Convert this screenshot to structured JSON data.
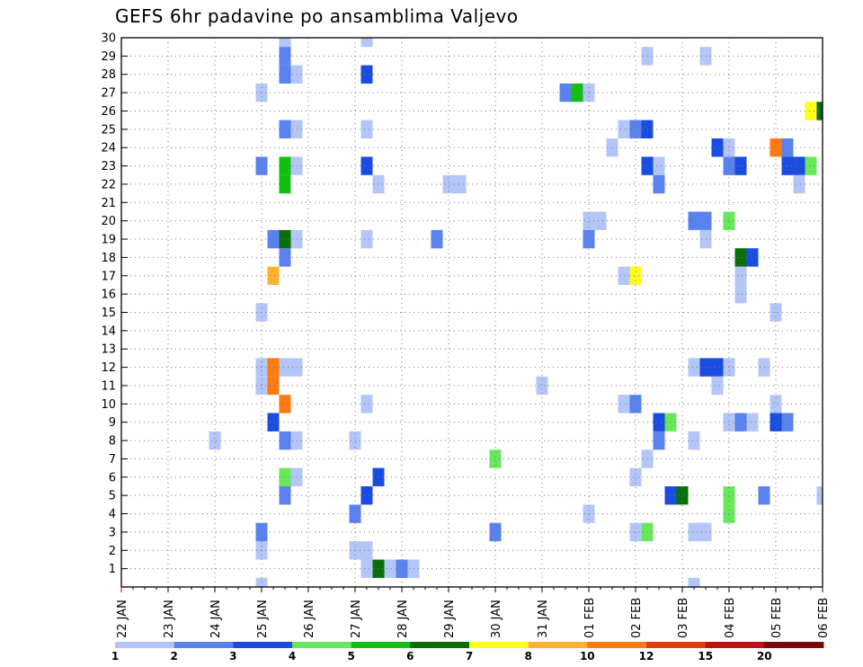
{
  "chart_data": {
    "type": "heatmap",
    "title": "GEFS 6hr padavine po ansamblima Valjevo",
    "x_tick_labels": [
      "22 JAN",
      "23 JAN",
      "24 JAN",
      "25 JAN",
      "26 JAN",
      "27 JAN",
      "28 JAN",
      "29 JAN",
      "30 JAN",
      "31 JAN",
      "01 FEB",
      "02 FEB",
      "03 FEB",
      "04 FEB",
      "05 FEB",
      "06 FEB"
    ],
    "y_tick_labels": [
      "1",
      "2",
      "3",
      "4",
      "5",
      "6",
      "7",
      "8",
      "9",
      "10",
      "11",
      "12",
      "13",
      "14",
      "15",
      "16",
      "17",
      "18",
      "19",
      "20",
      "21",
      "22",
      "23",
      "24",
      "25",
      "26",
      "27",
      "28",
      "29",
      "30"
    ],
    "xlim": [
      0,
      15
    ],
    "ylim": [
      0,
      30
    ],
    "grid": true,
    "colorbar": {
      "labels": [
        "1",
        "2",
        "3",
        "4",
        "5",
        "6",
        "7",
        "8",
        "10",
        "12",
        "15",
        "20"
      ],
      "colors": [
        "#b3c6f7",
        "#5a82ee",
        "#1a4ce0",
        "#66e85a",
        "#12c012",
        "#0a6e0a",
        "#ffff1a",
        "#ffb030",
        "#ff7a10",
        "#e53a10",
        "#c01010",
        "#7a0a0a"
      ]
    },
    "cells": [
      [
        3.5,
        30,
        1
      ],
      [
        3.5,
        29,
        2
      ],
      [
        3.5,
        28,
        2
      ],
      [
        3.5,
        25,
        2
      ],
      [
        3.5,
        23,
        5
      ],
      [
        3.5,
        22,
        5
      ],
      [
        3.5,
        19,
        6
      ],
      [
        3.5,
        18,
        2
      ],
      [
        3.5,
        12,
        1
      ],
      [
        3.5,
        10,
        9
      ],
      [
        3.5,
        8,
        2
      ],
      [
        3.5,
        6,
        4
      ],
      [
        3.5,
        5,
        2
      ],
      [
        5.25,
        30,
        1
      ],
      [
        5.25,
        28,
        3
      ],
      [
        5.25,
        25,
        1
      ],
      [
        5.25,
        23,
        3
      ],
      [
        5.25,
        19,
        1
      ],
      [
        5.25,
        10,
        1
      ],
      [
        5.25,
        5,
        3
      ],
      [
        5.25,
        2,
        1
      ],
      [
        5.25,
        1,
        1
      ],
      [
        3.0,
        27,
        1
      ],
      [
        3.0,
        23,
        2
      ],
      [
        3.0,
        15,
        1
      ],
      [
        3.0,
        12,
        1
      ],
      [
        3.0,
        11,
        1
      ],
      [
        3.0,
        3,
        2
      ],
      [
        3.0,
        2,
        1
      ],
      [
        3.0,
        0,
        1
      ],
      [
        3.75,
        28,
        1
      ],
      [
        3.75,
        23,
        1
      ],
      [
        3.75,
        25,
        1
      ],
      [
        3.75,
        19,
        1
      ],
      [
        3.75,
        12,
        1
      ],
      [
        3.75,
        8,
        1
      ],
      [
        3.75,
        6,
        1
      ],
      [
        3.25,
        19,
        2
      ],
      [
        3.25,
        17,
        8
      ],
      [
        3.25,
        12,
        9
      ],
      [
        3.25,
        11,
        9
      ],
      [
        3.25,
        9,
        3
      ],
      [
        5.5,
        22,
        1
      ],
      [
        5.5,
        6,
        3
      ],
      [
        5.5,
        1,
        6
      ],
      [
        5.0,
        8,
        1
      ],
      [
        5.0,
        4,
        2
      ],
      [
        5.0,
        2,
        1
      ],
      [
        5.75,
        1,
        1
      ],
      [
        6.0,
        1,
        2
      ],
      [
        6.25,
        1,
        1
      ],
      [
        7.0,
        22,
        1
      ],
      [
        7.25,
        22,
        1
      ],
      [
        6.75,
        19,
        2
      ],
      [
        2.0,
        8,
        1
      ],
      [
        8.0,
        7,
        4
      ],
      [
        8.0,
        3,
        2
      ],
      [
        9.0,
        11,
        1
      ],
      [
        9.5,
        27,
        2
      ],
      [
        9.75,
        27,
        5
      ],
      [
        10.0,
        27,
        1
      ],
      [
        10.0,
        20,
        1
      ],
      [
        10.25,
        20,
        1
      ],
      [
        10.0,
        19,
        2
      ],
      [
        10.0,
        4,
        1
      ],
      [
        10.5,
        24,
        1
      ],
      [
        10.75,
        25,
        1
      ],
      [
        11.0,
        25,
        2
      ],
      [
        11.25,
        25,
        3
      ],
      [
        11.25,
        29,
        1
      ],
      [
        11.25,
        23,
        3
      ],
      [
        11.5,
        23,
        1
      ],
      [
        11.5,
        22,
        2
      ],
      [
        10.75,
        17,
        1
      ],
      [
        11.0,
        17,
        7
      ],
      [
        10.75,
        10,
        1
      ],
      [
        11.0,
        10,
        2
      ],
      [
        11.5,
        9,
        3
      ],
      [
        11.75,
        9,
        4
      ],
      [
        11.5,
        8,
        2
      ],
      [
        11.25,
        7,
        1
      ],
      [
        11.0,
        6,
        1
      ],
      [
        11.0,
        3,
        1
      ],
      [
        11.25,
        3,
        4
      ],
      [
        11.75,
        5,
        3
      ],
      [
        12.0,
        5,
        6
      ],
      [
        12.25,
        20,
        2
      ],
      [
        12.5,
        20,
        2
      ],
      [
        12.5,
        19,
        1
      ],
      [
        12.25,
        12,
        1
      ],
      [
        12.5,
        12,
        3
      ],
      [
        12.75,
        12,
        3
      ],
      [
        13.0,
        12,
        1
      ],
      [
        12.75,
        11,
        1
      ],
      [
        12.75,
        24,
        3
      ],
      [
        13.0,
        24,
        1
      ],
      [
        12.5,
        29,
        1
      ],
      [
        13.0,
        20,
        4
      ],
      [
        13.25,
        18,
        6
      ],
      [
        13.5,
        18,
        3
      ],
      [
        13.0,
        23,
        2
      ],
      [
        13.25,
        23,
        3
      ],
      [
        13.0,
        9,
        1
      ],
      [
        13.25,
        9,
        2
      ],
      [
        13.5,
        9,
        1
      ],
      [
        13.0,
        5,
        4
      ],
      [
        13.0,
        4,
        4
      ],
      [
        12.25,
        8,
        1
      ],
      [
        12.25,
        3,
        1
      ],
      [
        12.5,
        3,
        1
      ],
      [
        12.25,
        0,
        1
      ],
      [
        13.25,
        17,
        1
      ],
      [
        13.25,
        16,
        1
      ],
      [
        13.75,
        5,
        2
      ],
      [
        13.75,
        12,
        1
      ],
      [
        14.0,
        24,
        9
      ],
      [
        14.25,
        24,
        2
      ],
      [
        14.25,
        23,
        3
      ],
      [
        14.5,
        23,
        3
      ],
      [
        14.75,
        23,
        4
      ],
      [
        14.5,
        22,
        1
      ],
      [
        14.0,
        15,
        1
      ],
      [
        14.0,
        10,
        1
      ],
      [
        14.0,
        9,
        3
      ],
      [
        14.25,
        9,
        2
      ],
      [
        14.75,
        26,
        7
      ],
      [
        15.0,
        26,
        6
      ],
      [
        15.0,
        5,
        1
      ]
    ]
  }
}
